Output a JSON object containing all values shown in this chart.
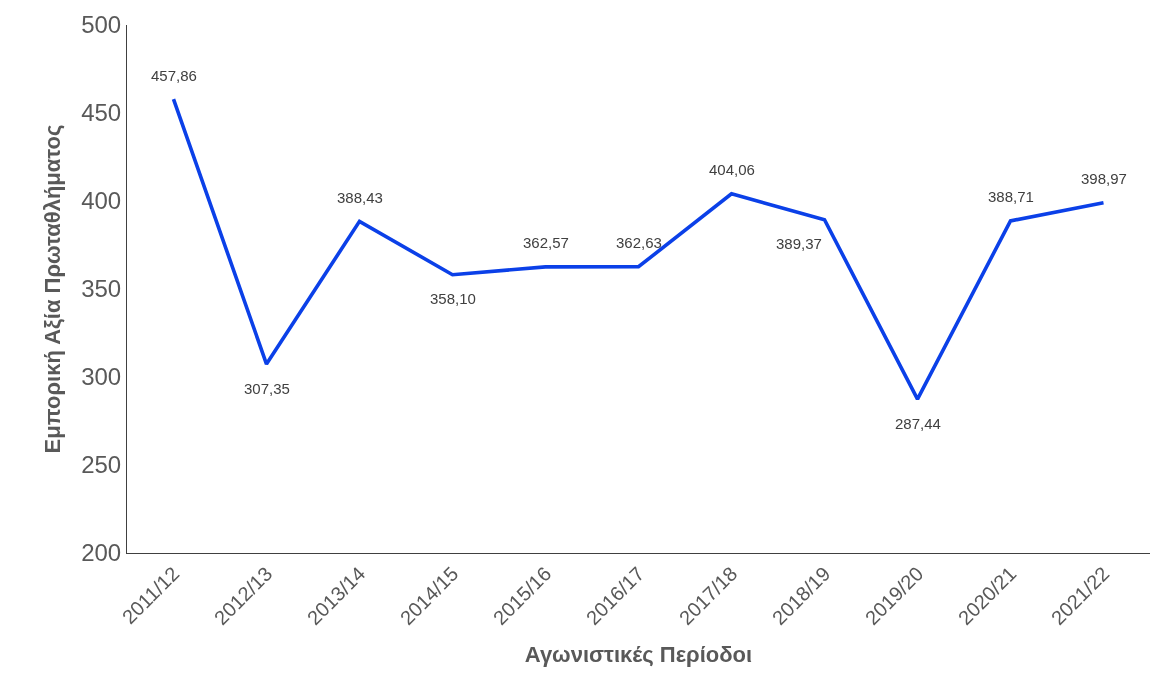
{
  "chart_data": {
    "type": "line",
    "xlabel": "Αγωνιστικές Περίοδοι",
    "ylabel": "Εμπορική Αξία Πρωταθλήματος",
    "categories": [
      "2011/12",
      "2012/13",
      "2013/14",
      "2014/15",
      "2015/16",
      "2016/17",
      "2017/18",
      "2018/19",
      "2019/20",
      "2020/21",
      "2021/22"
    ],
    "series": [
      {
        "color": "#0b40e8",
        "values": [
          457.86,
          307.35,
          388.43,
          358.1,
          362.57,
          362.63,
          404.06,
          389.37,
          287.44,
          388.71,
          398.97
        ],
        "value_labels": [
          "457,86",
          "307,35",
          "388,43",
          "358,10",
          "362,57",
          "362,63",
          "404,06",
          "389,37",
          "287,44",
          "388,71",
          "398,97"
        ]
      }
    ],
    "ylim": [
      200,
      500
    ],
    "yticks": [
      200,
      250,
      300,
      350,
      400,
      450,
      500
    ],
    "grid": false,
    "marker": "none",
    "line_style": "solid"
  }
}
